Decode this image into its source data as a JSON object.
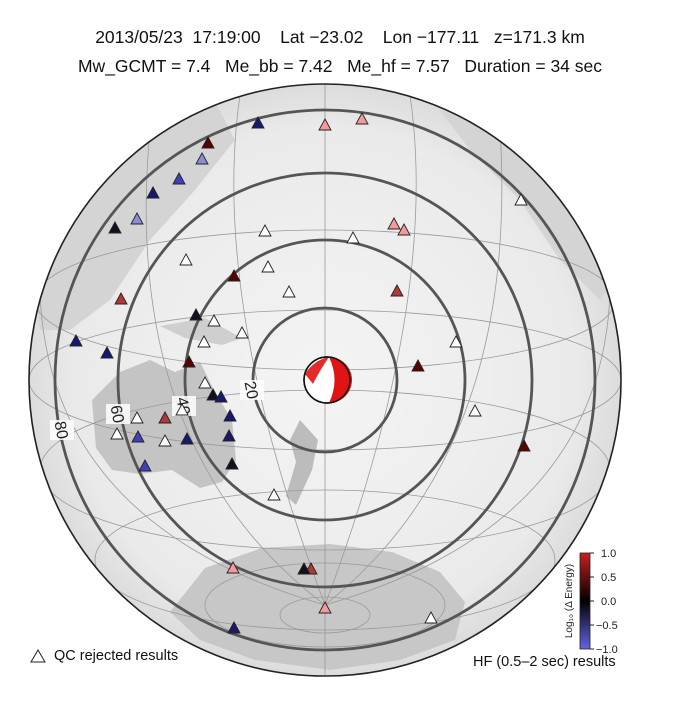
{
  "header": {
    "date": "2013/05/23",
    "time": "17:19:00",
    "lat": "Lat −23.02",
    "lon": "Lon −177.11",
    "depth": "z=171.3 km",
    "mw_gcmt": "Mw_GCMT = 7.4",
    "me_bb": "Me_bb = 7.42",
    "me_hf": "Me_hf = 7.57",
    "duration": "Duration = 34 sec"
  },
  "map": {
    "distance_ring_labels": [
      "20",
      "40",
      "60",
      "80"
    ],
    "event_marker": "beachball-focal-mechanism"
  },
  "stations": {
    "colors": {
      "dark_red": "#5a0000",
      "red": "#b03838",
      "light_red": "#f59a9a",
      "black": "#10101e",
      "dark_blue": "#181870",
      "blue": "#4040b8",
      "light_blue": "#8c8cd8",
      "rejected": "#ffffff"
    }
  },
  "colorbar": {
    "label": "Log₁₀ (Δ Energy)",
    "ticks": [
      "1.0",
      "0.5",
      "0.0",
      "−0.5",
      "−1.0"
    ],
    "range": [
      -1.0,
      1.0
    ],
    "colors": {
      "top": "#c81e1e",
      "middle": "#000000",
      "bottom": "#6464e6"
    }
  },
  "legend": {
    "qc_rejected": "QC rejected results",
    "hf_results": "HF (0.5–2 sec) results"
  }
}
